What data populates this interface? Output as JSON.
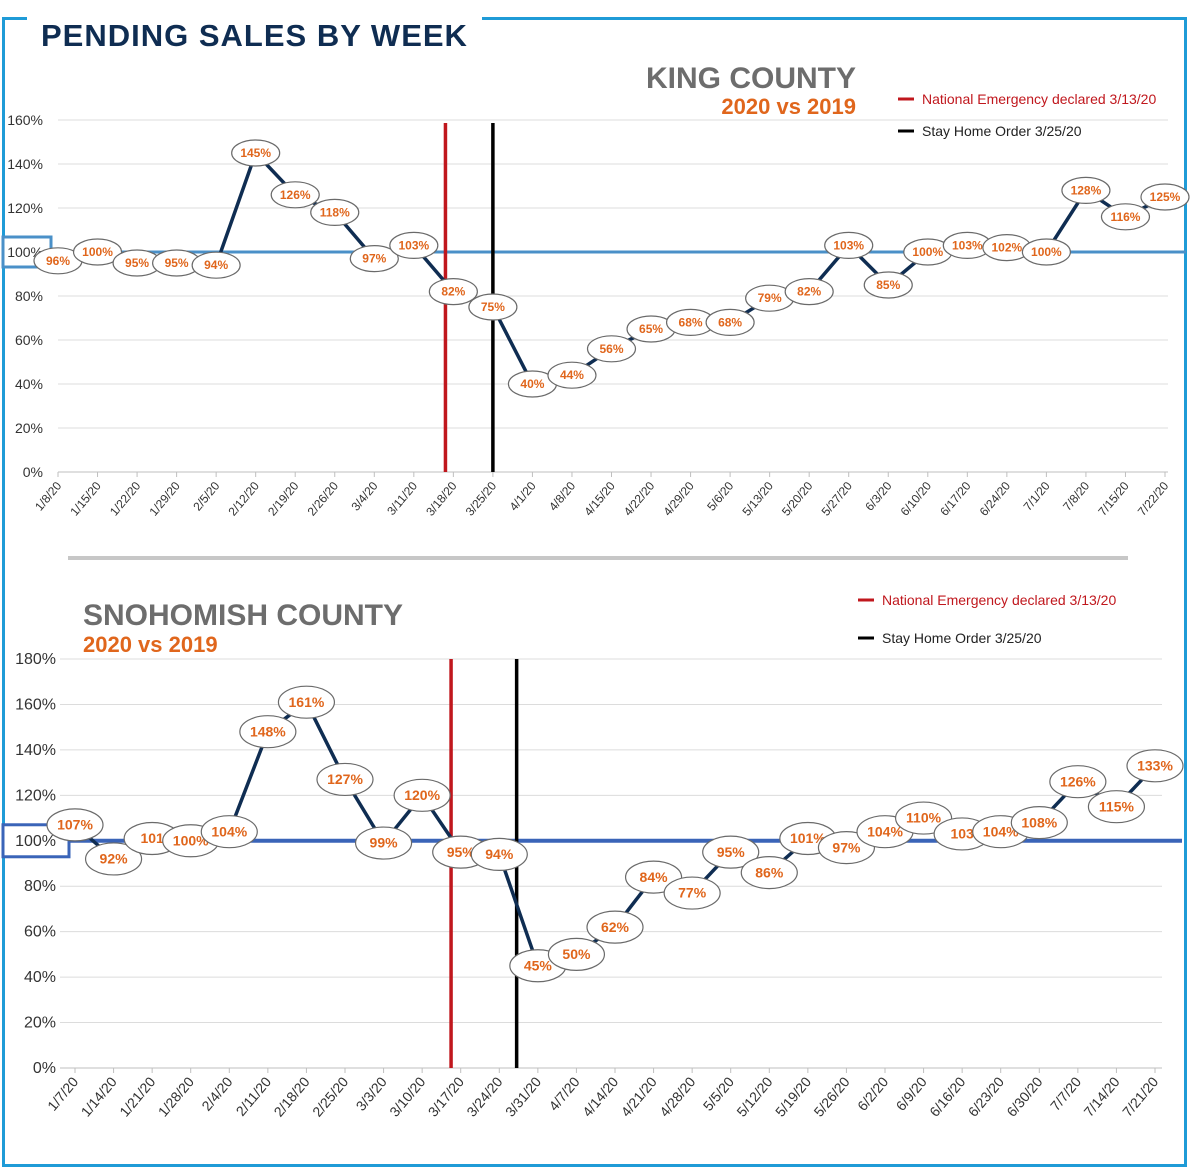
{
  "header": {
    "title": "PENDING SALES BY WEEK"
  },
  "legend": {
    "emergency": "National Emergency declared 3/13/20",
    "stay_home": "Stay Home Order 3/25/20"
  },
  "colors": {
    "frame": "#1f9bd7",
    "title": "#0f2d52",
    "line": "#0f2d52",
    "label": "#e0661c",
    "emergency": "#c0171d",
    "stay_home": "#000000",
    "baseline_king": "#4a90c8",
    "baseline_snoh": "#3a64b8"
  },
  "chart_data": [
    {
      "type": "line",
      "title": "KING COUNTY",
      "subtitle": "2020 vs 2019",
      "xlabel": "",
      "ylabel": "",
      "ylim": [
        0,
        160
      ],
      "yticks": [
        "0%",
        "20%",
        "40%",
        "60%",
        "80%",
        "100%",
        "120%",
        "140%",
        "160%"
      ],
      "x": [
        "1/8/20",
        "1/15/20",
        "1/22/20",
        "1/29/20",
        "2/5/20",
        "2/12/20",
        "2/19/20",
        "2/26/20",
        "3/4/20",
        "3/11/20",
        "3/18/20",
        "3/25/20",
        "4/1/20",
        "4/8/20",
        "4/15/20",
        "4/22/20",
        "4/29/20",
        "5/6/20",
        "5/13/20",
        "5/20/20",
        "5/27/20",
        "6/3/20",
        "6/10/20",
        "6/17/20",
        "6/24/20",
        "7/1/20",
        "7/8/20",
        "7/15/20",
        "7/22/20"
      ],
      "values": [
        96,
        100,
        95,
        95,
        94,
        145,
        126,
        118,
        97,
        103,
        82,
        75,
        40,
        44,
        56,
        65,
        68,
        68,
        79,
        82,
        103,
        85,
        100,
        103,
        102,
        100,
        128,
        116,
        125
      ],
      "labels": [
        "96%",
        "100%",
        "95%",
        "95%",
        "94%",
        "145%",
        "126%",
        "118%",
        "97%",
        "103%",
        "82%",
        "75%",
        "40%",
        "44%",
        "56%",
        "65%",
        "68%",
        "68%",
        "79%",
        "82%",
        "103%",
        "85%",
        "100%",
        "103%",
        "102%",
        "100%",
        "128%",
        "116%",
        "125%"
      ],
      "baseline": 100,
      "baseline_label": "100%",
      "markers": [
        {
          "name": "National Emergency",
          "x_index": 9.8
        },
        {
          "name": "Stay Home Order",
          "x_index": 11
        }
      ],
      "grid": true,
      "legend_position": "top-right"
    },
    {
      "type": "line",
      "title": "SNOHOMISH COUNTY",
      "subtitle": "2020 vs 2019",
      "xlabel": "",
      "ylabel": "",
      "ylim": [
        0,
        180
      ],
      "yticks": [
        "0%",
        "20%",
        "40%",
        "60%",
        "80%",
        "100%",
        "120%",
        "140%",
        "160%",
        "180%"
      ],
      "x": [
        "1/7/20",
        "1/14/20",
        "1/21/20",
        "1/28/20",
        "2/4/20",
        "2/11/20",
        "2/18/20",
        "2/25/20",
        "3/3/20",
        "3/10/20",
        "3/17/20",
        "3/24/20",
        "3/31/20",
        "4/7/20",
        "4/14/20",
        "4/21/20",
        "4/28/20",
        "5/5/20",
        "5/12/20",
        "5/19/20",
        "5/26/20",
        "6/2/20",
        "6/9/20",
        "6/16/20",
        "6/23/20",
        "6/30/20",
        "7/7/20",
        "7/14/20",
        "7/21/20"
      ],
      "values": [
        107,
        92,
        101,
        100,
        104,
        148,
        161,
        127,
        99,
        120,
        95,
        94,
        45,
        50,
        62,
        84,
        77,
        95,
        86,
        101,
        97,
        104,
        110,
        103,
        104,
        108,
        126,
        115,
        133
      ],
      "labels": [
        "107%",
        "92%",
        "101",
        "100%",
        "104%",
        "148%",
        "161%",
        "127%",
        "99%",
        "120%",
        "95%",
        "94%",
        "45%",
        "50%",
        "62%",
        "84%",
        "77%",
        "95%",
        "86%",
        "101%",
        "97%",
        "104%",
        "110%",
        "103",
        "104%",
        "108%",
        "126%",
        "115%",
        "133%"
      ],
      "baseline": 100,
      "baseline_label": "100%",
      "markers": [
        {
          "name": "National Emergency",
          "x_index": 9.75
        },
        {
          "name": "Stay Home Order",
          "x_index": 11.45
        }
      ],
      "grid": true,
      "legend_position": "top-right"
    }
  ]
}
